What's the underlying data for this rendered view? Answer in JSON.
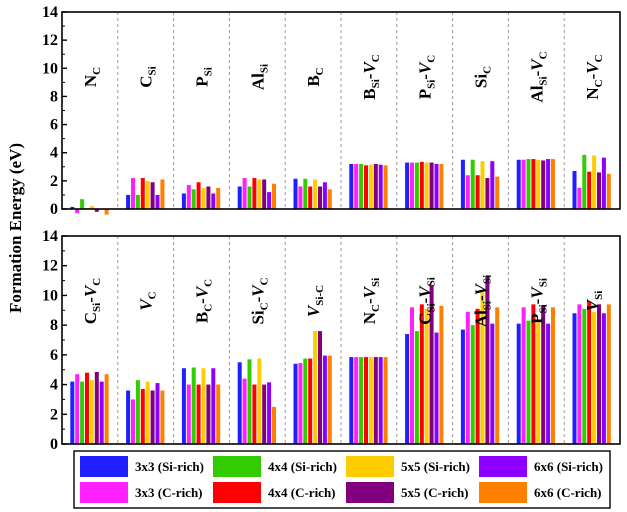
{
  "chart_data": {
    "type": "bar",
    "ylabel": "Formation Energy (eV)",
    "series": [
      {
        "name": "3x3 (Si-rich)",
        "color": "#1f1fff"
      },
      {
        "name": "3x3 (C-rich)",
        "color": "#ff1fff"
      },
      {
        "name": "4x4 (Si-rich)",
        "color": "#33cc00"
      },
      {
        "name": "4x4 (C-rich)",
        "color": "#ff0000"
      },
      {
        "name": "5x5 (Si-rich)",
        "color": "#ffcc00"
      },
      {
        "name": "5x5 (C-rich)",
        "color": "#800080"
      },
      {
        "name": "6x6 (Si-rich)",
        "color": "#8b00ff"
      },
      {
        "name": "6x6 (C-rich)",
        "color": "#ff8000"
      }
    ],
    "legend_order": [
      0,
      2,
      4,
      6,
      1,
      3,
      5,
      7
    ],
    "panels": [
      {
        "ylim": [
          0,
          14
        ],
        "yticks": [
          "0",
          "2",
          "4",
          "6",
          "8",
          "10",
          "12",
          "14"
        ],
        "categories": [
          {
            "base": "N",
            "sub": "C",
            "sup": ""
          },
          {
            "base": "C",
            "sub": "Si",
            "sup": ""
          },
          {
            "base": "P",
            "sub": "Si",
            "sup": ""
          },
          {
            "base": "Al",
            "sub": "Si",
            "sup": ""
          },
          {
            "base": "B",
            "sub": "C",
            "sup": ""
          },
          {
            "base": "B",
            "sub": "Si",
            "sup": "-V",
            "sub2": "C"
          },
          {
            "base": "P",
            "sub": "Si",
            "sup": "-V",
            "sub2": "C"
          },
          {
            "base": "Si",
            "sub": "C",
            "sup": ""
          },
          {
            "base": "Al",
            "sub": "Si",
            "sup": "-V",
            "sub2": "C"
          },
          {
            "base": "N",
            "sub": "C",
            "sup": "-V",
            "sub2": "C"
          }
        ],
        "values": [
          [
            0.15,
            -0.3,
            0.7,
            0.05,
            0.2,
            -0.2,
            0.0,
            -0.4
          ],
          [
            1.0,
            2.2,
            1.0,
            2.2,
            2.0,
            1.9,
            1.0,
            2.1
          ],
          [
            1.1,
            1.7,
            1.4,
            1.9,
            1.5,
            1.6,
            1.1,
            1.5
          ],
          [
            1.6,
            2.2,
            1.6,
            2.2,
            2.1,
            2.1,
            1.2,
            1.8
          ],
          [
            2.15,
            1.6,
            2.15,
            1.6,
            2.1,
            1.6,
            1.9,
            1.4
          ],
          [
            3.2,
            3.2,
            3.2,
            3.1,
            3.15,
            3.2,
            3.15,
            3.1
          ],
          [
            3.3,
            3.3,
            3.3,
            3.35,
            3.3,
            3.3,
            3.2,
            3.2
          ],
          [
            3.5,
            2.4,
            3.5,
            2.4,
            3.4,
            2.2,
            3.4,
            2.3
          ],
          [
            3.5,
            3.5,
            3.55,
            3.55,
            3.5,
            3.45,
            3.55,
            3.55
          ],
          [
            2.7,
            1.5,
            3.85,
            2.65,
            3.8,
            2.6,
            3.65,
            2.5
          ]
        ]
      },
      {
        "ylim": [
          0,
          14
        ],
        "yticks": [
          "0",
          "2",
          "4",
          "6",
          "8",
          "10",
          "12",
          "14"
        ],
        "categories": [
          {
            "base": "C",
            "sub": "Si",
            "sup": "-V",
            "sub2": "C"
          },
          {
            "base": "V",
            "sub": "C",
            "sup": ""
          },
          {
            "base": "B",
            "sub": "C",
            "sup": "-V",
            "sub2": "C"
          },
          {
            "base": "Si",
            "sub": "C",
            "sup": "-V",
            "sub2": "C"
          },
          {
            "base": "V",
            "sub": "Si-C",
            "sup": ""
          },
          {
            "base": "N",
            "sub": "C",
            "sup": "-V",
            "sub2": "Si"
          },
          {
            "base": "C",
            "sub": "Si",
            "sup": "-V",
            "sub2": "Si"
          },
          {
            "base": "Al",
            "sub": "Si",
            "sup": "-V",
            "sub2": "Si"
          },
          {
            "base": "P",
            "sub": "Si",
            "sup": "-V",
            "sub2": "Si"
          },
          {
            "base": "V",
            "sub": "Si",
            "sup": ""
          }
        ],
        "values": [
          [
            4.2,
            4.7,
            4.2,
            4.8,
            4.3,
            4.85,
            4.2,
            4.7
          ],
          [
            3.6,
            3.0,
            4.3,
            3.7,
            4.2,
            3.6,
            4.1,
            3.6
          ],
          [
            5.1,
            4.0,
            5.15,
            4.0,
            5.1,
            4.0,
            5.1,
            4.0
          ],
          [
            5.5,
            4.4,
            5.7,
            4.0,
            5.75,
            4.0,
            4.15,
            2.5
          ],
          [
            5.4,
            5.45,
            5.75,
            5.75,
            7.6,
            7.6,
            5.95,
            5.95
          ],
          [
            5.85,
            5.85,
            5.85,
            5.85,
            5.85,
            5.85,
            5.85,
            5.85
          ],
          [
            7.4,
            9.2,
            7.6,
            9.4,
            9.1,
            10.7,
            7.5,
            9.3
          ],
          [
            7.7,
            8.9,
            8.0,
            9.1,
            10.2,
            11.3,
            8.1,
            9.2
          ],
          [
            8.1,
            9.2,
            8.3,
            9.4,
            8.3,
            9.3,
            8.1,
            9.2
          ],
          [
            8.8,
            9.4,
            9.1,
            9.6,
            8.9,
            9.4,
            8.8,
            9.4
          ]
        ]
      }
    ]
  }
}
